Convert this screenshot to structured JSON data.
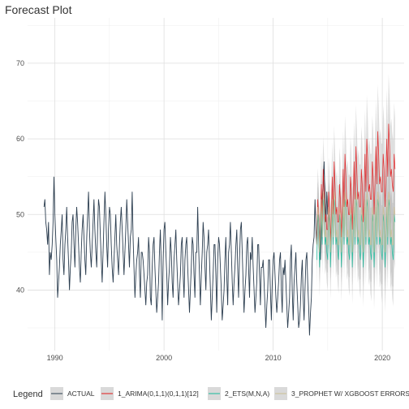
{
  "chart_data": {
    "type": "line",
    "title": "Forecast Plot",
    "xlabel": "",
    "ylabel": "",
    "xlim": [
      1987.5,
      2022.0
    ],
    "ylim": [
      32,
      76
    ],
    "x_ticks": [
      1990,
      2000,
      2010,
      2020
    ],
    "y_ticks": [
      40,
      50,
      60,
      70
    ],
    "x_tick_labels": [
      "1990",
      "2000",
      "2010",
      "2020"
    ],
    "y_tick_labels": [
      "40",
      "50",
      "60",
      "70"
    ],
    "grid": true,
    "legend": {
      "title": "Legend",
      "position": "bottom",
      "entries": [
        {
          "label": "ACTUAL",
          "color": "#2c3e50"
        },
        {
          "label": "1_ARIMA(0,1,1)(0,1,1)[12]",
          "color": "#e31a1c"
        },
        {
          "label": "2_ETS(M,N,A)",
          "color": "#18bc9c"
        },
        {
          "label": "3_PROPHET W/ XGBOOST ERRORS",
          "color": "#ccbe93"
        }
      ]
    },
    "series": [
      {
        "name": "ACTUAL",
        "color": "#2c3e50",
        "start": 1989.0,
        "step": 0.0833333,
        "values": [
          51,
          52,
          49,
          48,
          46,
          49,
          42,
          45,
          44,
          46,
          49,
          55,
          50,
          47,
          44,
          39,
          41,
          43,
          46,
          48,
          50,
          44,
          42,
          46,
          48,
          51,
          47,
          44,
          40,
          43,
          45,
          49,
          50,
          46,
          43,
          48,
          51,
          49,
          46,
          43,
          41,
          45,
          48,
          50,
          47,
          44,
          42,
          47,
          50,
          53,
          48,
          45,
          43,
          46,
          49,
          52,
          48,
          45,
          43,
          48,
          52,
          51,
          47,
          44,
          41,
          45,
          49,
          53,
          50,
          46,
          43,
          48,
          51,
          50,
          46,
          43,
          41,
          44,
          47,
          50,
          46,
          44,
          42,
          46,
          49,
          51,
          48,
          45,
          42,
          45,
          48,
          52,
          49,
          46,
          43,
          47,
          48,
          53,
          47,
          43,
          39,
          42,
          44,
          45,
          47,
          42,
          39,
          45,
          45,
          44,
          42,
          40,
          38,
          41,
          42,
          47,
          45,
          39,
          38,
          43,
          46,
          47,
          43,
          40,
          37,
          39,
          41,
          45,
          48,
          43,
          36,
          44,
          48,
          49,
          45,
          42,
          38,
          41,
          43,
          47,
          45,
          41,
          39,
          44,
          46,
          48,
          44,
          41,
          38,
          40,
          42,
          46,
          47,
          42,
          39,
          44,
          46,
          47,
          43,
          40,
          37,
          40,
          43,
          47,
          46,
          42,
          39,
          45,
          45,
          51,
          46,
          42,
          38,
          42,
          45,
          49,
          47,
          43,
          40,
          45,
          46,
          48,
          44,
          40,
          36,
          39,
          42,
          46,
          46,
          42,
          37,
          44,
          47,
          46,
          43,
          40,
          36,
          38,
          40,
          44,
          47,
          42,
          38,
          45,
          46,
          49,
          45,
          41,
          38,
          41,
          43,
          46,
          48,
          43,
          39,
          44,
          48,
          49,
          45,
          41,
          37,
          40,
          42,
          46,
          47,
          43,
          39,
          45,
          44,
          47,
          43,
          40,
          37,
          39,
          41,
          46,
          46,
          42,
          38,
          43,
          43,
          44,
          41,
          38,
          35,
          38,
          40,
          44,
          44,
          40,
          36,
          41,
          44,
          45,
          42,
          39,
          37,
          39,
          41,
          44,
          45,
          40,
          37,
          43,
          42,
          44,
          41,
          38,
          35,
          37,
          39,
          44,
          46,
          40,
          36,
          41,
          43,
          45,
          41,
          38,
          35,
          36,
          38,
          42,
          44,
          39,
          36,
          40,
          44,
          45,
          41,
          38,
          34,
          37,
          39,
          44,
          46,
          47,
          52,
          48,
          46,
          49,
          50,
          47,
          44,
          48,
          52,
          54,
          57,
          52,
          49,
          53,
          50
        ]
      },
      {
        "name": "1_ARIMA(0,1,1)(0,1,1)[12]",
        "color": "#e31a1c",
        "start": 2014.0,
        "step": 0.0833333,
        "values": [
          47,
          52,
          50,
          45,
          49,
          54,
          49,
          56,
          53,
          49,
          50,
          48,
          48,
          53,
          51,
          46,
          50,
          55,
          50,
          57,
          54,
          50,
          51,
          49,
          49,
          54,
          52,
          47,
          51,
          56,
          51,
          58,
          55,
          51,
          52,
          50,
          50,
          55,
          53,
          48,
          52,
          57,
          52,
          59,
          56,
          52,
          53,
          51,
          51,
          56,
          54,
          49,
          53,
          58,
          53,
          60,
          57,
          53,
          54,
          52,
          52,
          57,
          55,
          50,
          54,
          59,
          54,
          61,
          58,
          54,
          55,
          53,
          53,
          58,
          56,
          51,
          55,
          60,
          55,
          62,
          59,
          55,
          56,
          54,
          53,
          58,
          56
        ]
      },
      {
        "name": "2_ETS(M,N,A)",
        "color": "#18bc9c",
        "start": 2014.0,
        "step": 0.0833333,
        "values": [
          44,
          50,
          49,
          43,
          47,
          51,
          46,
          52,
          51,
          46,
          47,
          45,
          44,
          50,
          49,
          43,
          47,
          51,
          46,
          52,
          51,
          46,
          47,
          45,
          44,
          50,
          49,
          43,
          47,
          51,
          46,
          52,
          51,
          46,
          47,
          45,
          44,
          50,
          49,
          43,
          47,
          51,
          46,
          52,
          51,
          46,
          47,
          45,
          44,
          50,
          49,
          43,
          47,
          51,
          46,
          52,
          51,
          46,
          47,
          45,
          44,
          50,
          49,
          43,
          47,
          51,
          46,
          52,
          51,
          46,
          47,
          45,
          44,
          50,
          49,
          43,
          47,
          51,
          46,
          52,
          51,
          46,
          47,
          45,
          44,
          50,
          49
        ]
      },
      {
        "name": "3_PROPHET W/ XGBOOST ERRORS",
        "color": "#ccbe93",
        "start": 2014.0,
        "step": 0.0833333,
        "values": [
          46,
          51,
          50,
          45,
          48,
          52,
          47,
          53,
          52,
          47,
          48,
          46,
          46,
          51,
          50,
          45,
          48,
          52,
          47,
          53,
          52,
          47,
          48,
          46,
          46,
          51,
          50,
          45,
          48,
          52,
          47,
          53,
          52,
          47,
          48,
          46,
          46,
          51,
          50,
          45,
          48,
          52,
          47,
          53,
          52,
          47,
          48,
          46,
          46,
          51,
          50,
          45,
          48,
          52,
          47,
          53,
          52,
          47,
          48,
          46,
          46,
          51,
          50,
          45,
          48,
          52,
          47,
          53,
          52,
          47,
          48,
          46,
          46,
          51,
          50,
          45,
          48,
          52,
          47,
          53,
          52,
          47,
          48,
          46,
          46,
          51,
          50
        ]
      }
    ]
  }
}
